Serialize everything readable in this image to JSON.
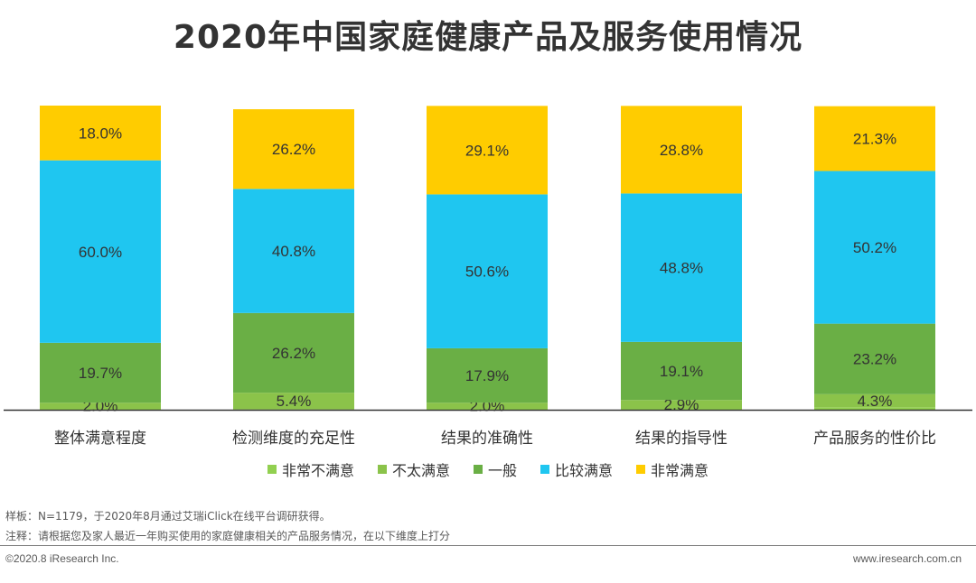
{
  "header": {
    "title": "2020年中国家庭健康产品及服务使用情况"
  },
  "chart_data": {
    "type": "bar",
    "stacked": true,
    "percent": true,
    "categories": [
      "整体满意程度",
      "检测维度的充足性",
      "结果的准确性",
      "结果的指导性",
      "产品服务的性价比"
    ],
    "series": [
      {
        "name": "非常不满意",
        "color": "#92D050",
        "values": [
          0.3,
          0.2,
          0.3,
          0.3,
          0.8
        ],
        "labels": [
          "",
          "",
          "",
          "",
          ""
        ]
      },
      {
        "name": "不太满意",
        "color": "#8BC34A",
        "values": [
          2.0,
          5.4,
          2.0,
          2.9,
          4.3
        ],
        "labels": [
          "2.0%",
          "5.4%",
          "2.0%",
          "2.9%",
          "4.3%"
        ]
      },
      {
        "name": "一般",
        "color": "#6AAF45",
        "values": [
          19.7,
          26.2,
          17.9,
          19.1,
          23.2
        ],
        "labels": [
          "19.7%",
          "26.2%",
          "17.9%",
          "19.1%",
          "23.2%"
        ]
      },
      {
        "name": "比较满意",
        "color": "#1FC6F0",
        "values": [
          60.0,
          40.8,
          50.6,
          48.8,
          50.2
        ],
        "labels": [
          "60.0%",
          "40.8%",
          "50.6%",
          "48.8%",
          "50.2%"
        ]
      },
      {
        "name": "非常满意",
        "color": "#FFCC00",
        "values": [
          18.0,
          26.2,
          29.1,
          28.8,
          21.3
        ],
        "labels": [
          "18.0%",
          "26.2%",
          "29.1%",
          "28.8%",
          "21.3%"
        ]
      }
    ],
    "ylim": [
      0,
      100
    ],
    "legend_position": "bottom"
  },
  "notes": {
    "sample": "样板：N=1179，于2020年8月通过艾瑞iClick在线平台调研获得。",
    "note": "注释：请根据您及家人最近一年购买使用的家庭健康相关的产品服务情况，在以下维度上打分"
  },
  "footer": {
    "copyright": "©2020.8 iResearch Inc.",
    "website": "www.iresearch.com.cn"
  }
}
